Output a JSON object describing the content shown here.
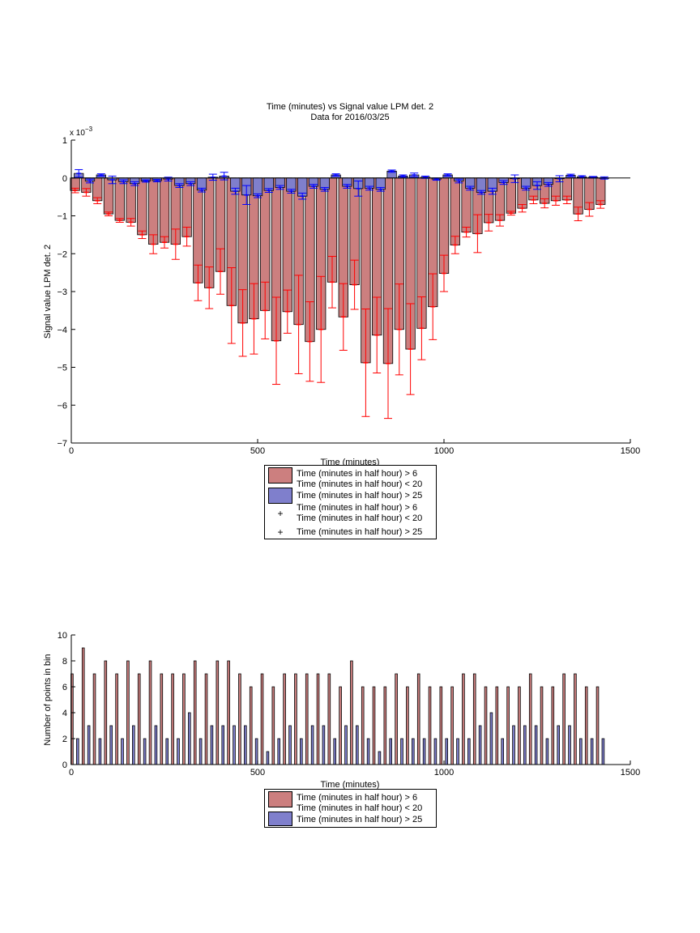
{
  "colors": {
    "red_bar": "#cc7f7f",
    "blue_bar": "#7f7fcc",
    "red_err": "#ff0000",
    "blue_err": "#0000ff",
    "axis": "#000000",
    "background": "#ffffff"
  },
  "chart_data": [
    {
      "type": "bar",
      "title": "Time (minutes) vs Signal value LPM det. 2",
      "subtitle": "Data for 2016/03/25",
      "xlabel": "Time (minutes)",
      "ylabel": "Signal value LPM det. 2",
      "y_exponent_label": "x 10",
      "y_exponent_power": "−3",
      "xlim": [
        0,
        1500
      ],
      "ylim": [
        -7,
        1
      ],
      "x_ticks": [
        0,
        500,
        1000,
        1500
      ],
      "y_ticks": [
        "1",
        "0",
        "−1",
        "−2",
        "−3",
        "−4",
        "−5",
        "−6",
        "−7"
      ],
      "grid": false,
      "bar_width_minutes": 25,
      "red_offset_minutes": 10,
      "blue_offset_minutes": 20,
      "legend": [
        {
          "marker": "bar-red",
          "lines": [
            "Time (minutes in half hour) > 6",
            "Time (minutes in half hour) < 20"
          ]
        },
        {
          "marker": "bar-blue",
          "lines": [
            "Time (minutes in half hour) > 25"
          ]
        },
        {
          "marker": "plus-red",
          "lines": [
            "Time (minutes in half hour) > 6",
            "Time (minutes in half hour) < 20"
          ]
        },
        {
          "marker": "plus-blue",
          "lines": [
            "Time (minutes in half hour) > 25"
          ]
        }
      ],
      "x": [
        0,
        30,
        60,
        90,
        120,
        150,
        180,
        210,
        240,
        270,
        300,
        330,
        360,
        390,
        420,
        450,
        480,
        510,
        540,
        570,
        600,
        630,
        660,
        690,
        720,
        750,
        780,
        810,
        840,
        870,
        900,
        930,
        960,
        990,
        1020,
        1050,
        1080,
        1110,
        1140,
        1170,
        1200,
        1230,
        1260,
        1290,
        1320,
        1350,
        1380,
        1410
      ],
      "series": [
        {
          "name": "Time (minutes in half hour) > 6 / Time (minutes in half hour) < 20",
          "values": [
            -0.33,
            -0.38,
            -0.6,
            -0.95,
            -1.12,
            -1.17,
            -1.5,
            -1.75,
            -1.7,
            -1.75,
            -1.55,
            -2.77,
            -2.9,
            -2.47,
            -3.37,
            -3.83,
            -3.72,
            -3.5,
            -4.3,
            -3.53,
            -3.87,
            -4.32,
            -4.0,
            -2.75,
            -3.67,
            -2.82,
            -4.88,
            -4.15,
            -4.9,
            -4.0,
            -4.52,
            -3.97,
            -3.4,
            -2.52,
            -1.77,
            -1.43,
            -1.47,
            -1.18,
            -1.12,
            -0.93,
            -0.8,
            -0.58,
            -0.67,
            -0.6,
            -0.58,
            -0.95,
            -0.83,
            -0.7
          ],
          "err": [
            0.06,
            0.1,
            0.08,
            0.05,
            0.05,
            0.1,
            0.1,
            0.25,
            0.15,
            0.4,
            0.25,
            0.47,
            0.55,
            0.6,
            1.0,
            0.88,
            0.93,
            0.75,
            1.15,
            0.57,
            1.3,
            1.05,
            1.4,
            0.68,
            0.88,
            0.65,
            1.42,
            1.0,
            1.45,
            1.2,
            1.2,
            0.83,
            0.87,
            0.48,
            0.23,
            0.13,
            0.5,
            0.22,
            0.15,
            0.05,
            0.1,
            0.1,
            0.12,
            0.12,
            0.1,
            0.18,
            0.18,
            0.1
          ]
        },
        {
          "name": "Time (minutes in half hour) > 25",
          "values": [
            0.12,
            -0.08,
            0.08,
            -0.05,
            -0.1,
            -0.15,
            -0.08,
            -0.07,
            -0.03,
            -0.2,
            -0.15,
            -0.32,
            0.02,
            0.05,
            -0.35,
            -0.45,
            -0.47,
            -0.33,
            -0.25,
            -0.35,
            -0.48,
            -0.22,
            -0.3,
            0.08,
            -0.22,
            -0.28,
            -0.27,
            -0.3,
            0.18,
            0.05,
            0.08,
            0.02,
            -0.03,
            0.08,
            -0.08,
            -0.27,
            -0.38,
            -0.35,
            -0.12,
            -0.02,
            -0.27,
            -0.2,
            -0.17,
            -0.02,
            0.07,
            0.03,
            0.02,
            0.0
          ],
          "err": [
            0.1,
            0.05,
            0.03,
            0.1,
            0.05,
            0.05,
            0.03,
            0.03,
            0.05,
            0.05,
            0.05,
            0.05,
            0.08,
            0.1,
            0.08,
            0.25,
            0.05,
            0.05,
            0.05,
            0.05,
            0.08,
            0.05,
            0.05,
            0.03,
            0.05,
            0.2,
            0.05,
            0.05,
            0.03,
            0.03,
            0.05,
            0.03,
            0.03,
            0.03,
            0.05,
            0.05,
            0.05,
            0.08,
            0.05,
            0.1,
            0.05,
            0.1,
            0.05,
            0.08,
            0.03,
            0.03,
            0.02,
            0.03
          ]
        }
      ]
    },
    {
      "type": "bar",
      "xlabel": "Time (minutes)",
      "ylabel": "Number of points in bin",
      "xlim": [
        0,
        1500
      ],
      "ylim": [
        0,
        10
      ],
      "x_ticks": [
        0,
        500,
        1000,
        1500
      ],
      "y_ticks": [
        0,
        2,
        4,
        6,
        8,
        10
      ],
      "grid": false,
      "bar_width_minutes": 6,
      "red_offset_minutes": 2,
      "blue_offset_minutes": 17,
      "legend": [
        {
          "marker": "bar-red",
          "lines": [
            "Time (minutes in half hour) > 6",
            "Time (minutes in half hour) < 20"
          ]
        },
        {
          "marker": "bar-blue",
          "lines": [
            "Time (minutes in half hour) > 25"
          ]
        }
      ],
      "x": [
        0,
        30,
        60,
        90,
        120,
        150,
        180,
        210,
        240,
        270,
        300,
        330,
        360,
        390,
        420,
        450,
        480,
        510,
        540,
        570,
        600,
        630,
        660,
        690,
        720,
        750,
        780,
        810,
        840,
        870,
        900,
        930,
        960,
        990,
        1020,
        1050,
        1080,
        1110,
        1140,
        1170,
        1200,
        1230,
        1260,
        1290,
        1320,
        1350,
        1380,
        1410
      ],
      "series": [
        {
          "name": "Time (minutes in half hour) > 6 / Time (minutes in half hour) < 20",
          "values": [
            7,
            9,
            7,
            8,
            7,
            8,
            7,
            8,
            7,
            7,
            7,
            8,
            7,
            8,
            8,
            7,
            6,
            7,
            6,
            7,
            7,
            7,
            7,
            7,
            6,
            8,
            6,
            6,
            6,
            7,
            6,
            7,
            6,
            6,
            6,
            7,
            7,
            6,
            6,
            6,
            6,
            7,
            6,
            6,
            7,
            7,
            6,
            6
          ]
        },
        {
          "name": "Time (minutes in half hour) > 25",
          "values": [
            2,
            3,
            2,
            3,
            2,
            3,
            2,
            3,
            2,
            2,
            4,
            2,
            3,
            3,
            3,
            3,
            2,
            1,
            2,
            3,
            2,
            3,
            3,
            2,
            3,
            3,
            2,
            1,
            2,
            2,
            2,
            2,
            2,
            2,
            2,
            2,
            3,
            4,
            2,
            3,
            3,
            3,
            2,
            3,
            3,
            2,
            2,
            2
          ]
        }
      ]
    }
  ]
}
